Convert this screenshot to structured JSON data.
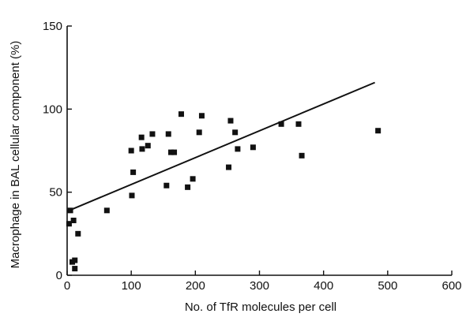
{
  "chart_data": {
    "type": "scatter",
    "title": "",
    "xlabel": "No. of TfR molecules per cell",
    "ylabel": "Macrophage in BAL cellular component (%)",
    "xlim": [
      0,
      600
    ],
    "ylim": [
      0,
      150
    ],
    "x_ticks": [
      0,
      100,
      200,
      300,
      400,
      500,
      600
    ],
    "y_ticks": [
      0,
      50,
      100,
      150
    ],
    "x_tick_labels": [
      "0",
      "100",
      "200",
      "300",
      "400",
      "500",
      "600"
    ],
    "y_tick_labels": [
      "0",
      "50",
      "100",
      "150"
    ],
    "grid": false,
    "marker": "square",
    "color": "#111111",
    "points": [
      {
        "x": 3,
        "y": 31
      },
      {
        "x": 5,
        "y": 39
      },
      {
        "x": 8,
        "y": 8
      },
      {
        "x": 10,
        "y": 33
      },
      {
        "x": 12,
        "y": 9
      },
      {
        "x": 12,
        "y": 4
      },
      {
        "x": 17,
        "y": 25
      },
      {
        "x": 62,
        "y": 39
      },
      {
        "x": 100,
        "y": 75
      },
      {
        "x": 101,
        "y": 48
      },
      {
        "x": 103,
        "y": 62
      },
      {
        "x": 116,
        "y": 83
      },
      {
        "x": 117,
        "y": 76
      },
      {
        "x": 126,
        "y": 78
      },
      {
        "x": 133,
        "y": 85
      },
      {
        "x": 155,
        "y": 54
      },
      {
        "x": 158,
        "y": 85
      },
      {
        "x": 162,
        "y": 74
      },
      {
        "x": 167,
        "y": 74
      },
      {
        "x": 178,
        "y": 97
      },
      {
        "x": 188,
        "y": 53
      },
      {
        "x": 196,
        "y": 58
      },
      {
        "x": 206,
        "y": 86
      },
      {
        "x": 210,
        "y": 96
      },
      {
        "x": 252,
        "y": 65
      },
      {
        "x": 255,
        "y": 93
      },
      {
        "x": 262,
        "y": 86
      },
      {
        "x": 266,
        "y": 76
      },
      {
        "x": 290,
        "y": 77
      },
      {
        "x": 334,
        "y": 91
      },
      {
        "x": 361,
        "y": 91
      },
      {
        "x": 366,
        "y": 72
      },
      {
        "x": 485,
        "y": 87
      }
    ],
    "trendline": {
      "x": [
        0,
        480
      ],
      "y": [
        38.5,
        116
      ]
    }
  }
}
